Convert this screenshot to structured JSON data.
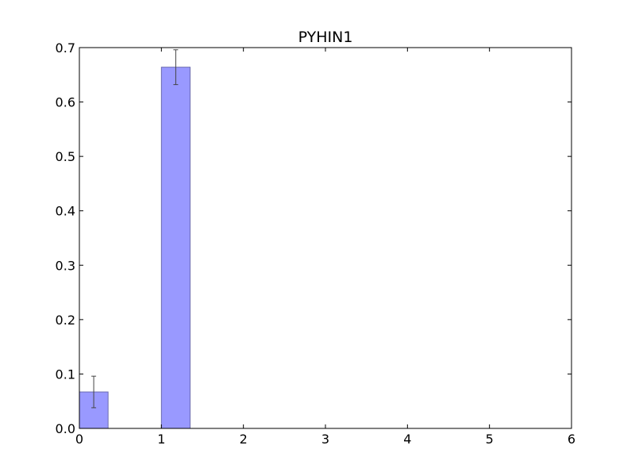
{
  "chart_data": {
    "type": "bar",
    "title": "PYHIN1",
    "xlabel": "",
    "ylabel": "",
    "xlim": [
      0,
      6
    ],
    "ylim": [
      0,
      0.7
    ],
    "grid": false,
    "x_ticks": [
      "0",
      "1",
      "2",
      "3",
      "4",
      "5",
      "6"
    ],
    "y_ticks": [
      "0.0",
      "0.1",
      "0.2",
      "0.3",
      "0.4",
      "0.5",
      "0.6",
      "0.7"
    ],
    "bar_width": 0.35,
    "bars": [
      {
        "x": 0,
        "value": 0.067,
        "error": 0.029
      },
      {
        "x": 1,
        "value": 0.664,
        "error": 0.032
      }
    ],
    "colors": {
      "bar_fill": "#9999ff",
      "bar_edge": "#6b6bb0",
      "error_bar": "#444444",
      "axes": "#000000"
    }
  }
}
